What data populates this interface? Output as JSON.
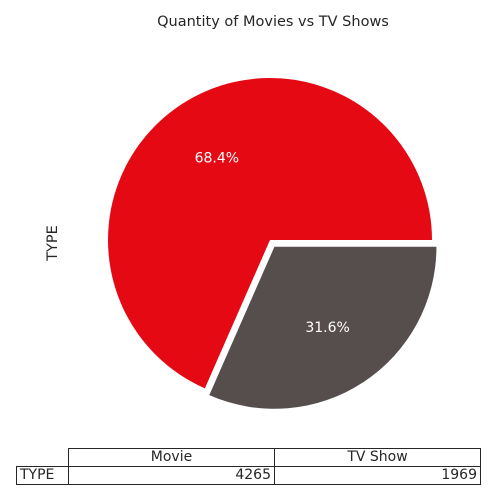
{
  "chart_data": {
    "type": "pie",
    "title": "Quantity of Movies vs TV Shows",
    "ylabel": "TYPE",
    "categories": [
      "Movie",
      "TV Show"
    ],
    "values": [
      4265,
      1969
    ],
    "percent_labels": [
      "68.4%",
      "31.6%"
    ],
    "colors": [
      "#e50914",
      "#564d4d"
    ],
    "explode": [
      0,
      0.05
    ],
    "table": {
      "row_label": "TYPE",
      "columns": [
        "Movie",
        "TV Show"
      ],
      "values": [
        "4265",
        "1969"
      ]
    }
  }
}
